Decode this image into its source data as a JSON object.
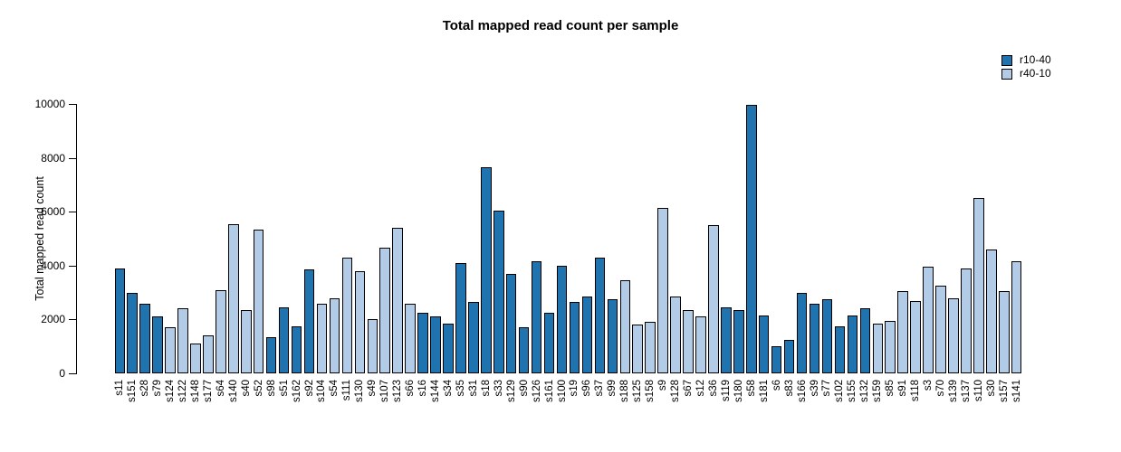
{
  "chart_data": {
    "type": "bar",
    "title": "Total mapped read count per sample",
    "xlabel": "",
    "ylabel": "Total mapped read count",
    "ylim": [
      0,
      10000
    ],
    "yticks": [
      0,
      2000,
      4000,
      6000,
      8000,
      10000
    ],
    "grid": false,
    "legend_position": "top-right",
    "bar_border_color": "#000000",
    "series": [
      {
        "name": "r10-40",
        "color": "#1F73AE"
      },
      {
        "name": "r40-10",
        "color": "#B2CCE7"
      }
    ],
    "categories": [
      "s11",
      "s151",
      "s28",
      "s79",
      "s124",
      "s122",
      "s148",
      "s177",
      "s64",
      "s140",
      "s40",
      "s52",
      "s98",
      "s51",
      "s162",
      "s92",
      "s104",
      "s54",
      "s111",
      "s130",
      "s49",
      "s107",
      "s123",
      "s66",
      "s16",
      "s144",
      "s34",
      "s35",
      "s31",
      "s18",
      "s33",
      "s129",
      "s90",
      "s126",
      "s161",
      "s100",
      "s19",
      "s96",
      "s37",
      "s99",
      "s188",
      "s125",
      "s158",
      "s9",
      "s128",
      "s67",
      "s12",
      "s36",
      "s119",
      "s180",
      "s58",
      "s181",
      "s6",
      "s83",
      "s166",
      "s39",
      "s77",
      "s102",
      "s155",
      "s132",
      "s159",
      "s85",
      "s91",
      "s118",
      "s3",
      "s70",
      "s139",
      "s137",
      "s110",
      "s30",
      "s157",
      "s141"
    ],
    "values": [
      3900,
      3000,
      2600,
      2100,
      1700,
      2400,
      1100,
      1400,
      3100,
      5550,
      2350,
      5350,
      1350,
      2450,
      1750,
      3850,
      2600,
      2800,
      4300,
      3800,
      2000,
      4650,
      5400,
      2600,
      2250,
      2100,
      1850,
      4100,
      2650,
      7650,
      6050,
      3700,
      1700,
      4150,
      2250,
      4000,
      2650,
      2850,
      4300,
      2750,
      3450,
      1800,
      1900,
      6150,
      2850,
      2350,
      2100,
      5500,
      2450,
      2350,
      9950,
      2150,
      1000,
      1250,
      3000,
      2600,
      2750,
      1750,
      2150,
      2400,
      1850,
      1950,
      3050,
      2700,
      3950,
      3250,
      2800,
      3900,
      6500,
      4600,
      3050,
      4150
    ],
    "bar_series": [
      "r10-40",
      "r10-40",
      "r10-40",
      "r10-40",
      "r40-10",
      "r40-10",
      "r40-10",
      "r40-10",
      "r40-10",
      "r40-10",
      "r40-10",
      "r40-10",
      "r10-40",
      "r10-40",
      "r10-40",
      "r10-40",
      "r40-10",
      "r40-10",
      "r40-10",
      "r40-10",
      "r40-10",
      "r40-10",
      "r40-10",
      "r40-10",
      "r10-40",
      "r10-40",
      "r10-40",
      "r10-40",
      "r10-40",
      "r10-40",
      "r10-40",
      "r10-40",
      "r10-40",
      "r10-40",
      "r10-40",
      "r10-40",
      "r10-40",
      "r10-40",
      "r10-40",
      "r10-40",
      "r40-10",
      "r40-10",
      "r40-10",
      "r40-10",
      "r40-10",
      "r40-10",
      "r40-10",
      "r40-10",
      "r10-40",
      "r10-40",
      "r10-40",
      "r10-40",
      "r10-40",
      "r10-40",
      "r10-40",
      "r10-40",
      "r10-40",
      "r10-40",
      "r10-40",
      "r10-40",
      "r40-10",
      "r40-10",
      "r40-10",
      "r40-10",
      "r40-10",
      "r40-10",
      "r40-10",
      "r40-10",
      "r40-10",
      "r40-10",
      "r40-10",
      "r40-10"
    ]
  }
}
